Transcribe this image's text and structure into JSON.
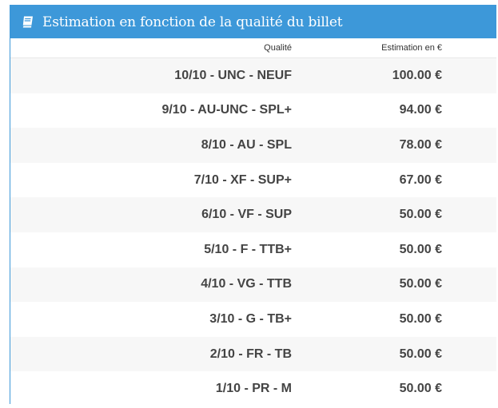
{
  "panel": {
    "title": "Estimation en fonction de la qualité du billet",
    "icon": "book-icon",
    "header_color": "#3d98d9"
  },
  "table": {
    "columns": [
      "Qualité",
      "Estimation en €"
    ],
    "rows": [
      {
        "quality": "10/10 - UNC - NEUF",
        "estimate": "100.00 €"
      },
      {
        "quality": "9/10 - AU-UNC - SPL+",
        "estimate": "94.00 €"
      },
      {
        "quality": "8/10 - AU - SPL",
        "estimate": "78.00 €"
      },
      {
        "quality": "7/10 - XF - SUP+",
        "estimate": "67.00 €"
      },
      {
        "quality": "6/10 - VF - SUP",
        "estimate": "50.00 €"
      },
      {
        "quality": "5/10 - F - TTB+",
        "estimate": "50.00 €"
      },
      {
        "quality": "4/10 - VG - TTB",
        "estimate": "50.00 €"
      },
      {
        "quality": "3/10 - G - TB+",
        "estimate": "50.00 €"
      },
      {
        "quality": "2/10 - FR - TB",
        "estimate": "50.00 €"
      },
      {
        "quality": "1/10 - PR - M",
        "estimate": "50.00 €"
      }
    ]
  }
}
